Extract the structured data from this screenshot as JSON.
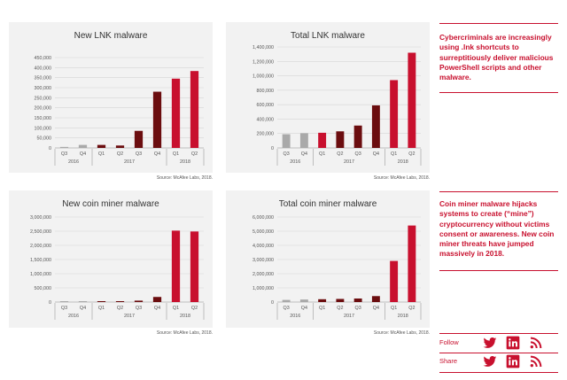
{
  "colors": {
    "gray": "#a9a9a9",
    "dark": "#6b0d0f",
    "red": "#c8102e",
    "panel": "#f2f2f2"
  },
  "chart_data": [
    {
      "type": "bar",
      "title": "New LNK malware",
      "categories": [
        "Q3",
        "Q4",
        "Q1",
        "Q2",
        "Q3",
        "Q4",
        "Q1",
        "Q2"
      ],
      "years": [
        "2016",
        "2017",
        "2018"
      ],
      "values": [
        5000,
        15000,
        15000,
        12000,
        85000,
        280000,
        345000,
        383000
      ],
      "bar_colors": [
        "gray",
        "gray",
        "dark",
        "dark",
        "dark",
        "dark",
        "red",
        "red"
      ],
      "ylim": [
        0,
        450000
      ],
      "yticks": [
        "0",
        "50,000",
        "100,000",
        "150,000",
        "200,000",
        "250,000",
        "300,000",
        "350,000",
        "400,000",
        "450,000"
      ],
      "source": "Source: McAfee Labs, 2018."
    },
    {
      "type": "bar",
      "title": "Total LNK malware",
      "categories": [
        "Q3",
        "Q4",
        "Q1",
        "Q2",
        "Q3",
        "Q4",
        "Q1",
        "Q2"
      ],
      "years": [
        "2016",
        "2017",
        "2018"
      ],
      "values": [
        190000,
        205000,
        210000,
        230000,
        310000,
        590000,
        940000,
        1320000
      ],
      "bar_colors": [
        "gray",
        "gray",
        "red",
        "dark",
        "dark",
        "dark",
        "red",
        "red"
      ],
      "ylim": [
        0,
        1400000
      ],
      "yticks": [
        "0",
        "200,000",
        "400,000",
        "600,000",
        "800,000",
        "1,000,000",
        "1,200,000",
        "1,400,000"
      ],
      "source": "Source: McAfee Labs, 2018."
    },
    {
      "type": "bar",
      "title": "New coin miner malware",
      "categories": [
        "Q3",
        "Q4",
        "Q1",
        "Q2",
        "Q3",
        "Q4",
        "Q1",
        "Q2"
      ],
      "years": [
        "2016",
        "2017",
        "2018"
      ],
      "values": [
        15000,
        20000,
        25000,
        30000,
        50000,
        180000,
        2520000,
        2490000
      ],
      "bar_colors": [
        "gray",
        "gray",
        "dark",
        "dark",
        "dark",
        "dark",
        "red",
        "red"
      ],
      "ylim": [
        0,
        3000000
      ],
      "yticks": [
        "0",
        "500,000",
        "1,000,000",
        "1,500,000",
        "2,000,000",
        "2,500,000",
        "3,000,000"
      ],
      "source": "Source: McAfee Labs, 2018."
    },
    {
      "type": "bar",
      "title": "Total coin miner malware",
      "categories": [
        "Q3",
        "Q4",
        "Q1",
        "Q2",
        "Q3",
        "Q4",
        "Q1",
        "Q2"
      ],
      "years": [
        "2016",
        "2017",
        "2018"
      ],
      "values": [
        150000,
        180000,
        200000,
        220000,
        250000,
        420000,
        2900000,
        5400000
      ],
      "bar_colors": [
        "gray",
        "gray",
        "dark",
        "dark",
        "dark",
        "dark",
        "red",
        "red"
      ],
      "ylim": [
        0,
        6000000
      ],
      "yticks": [
        "0",
        "1,000,000",
        "2,000,000",
        "3,000,000",
        "4,000,000",
        "5,000,000",
        "6,000,000"
      ],
      "source": "Source: McAfee Labs, 2018."
    }
  ],
  "sidebar": {
    "note1": "Cybercriminals are increasingly using .lnk shortcuts to surreptitiously deliver malicious PowerShell scripts and other malware.",
    "note2": "Coin miner malware hijacks systems to create (“mine”) cryptocurrency without victims consent or awareness. New coin miner threats have jumped massively in 2018.",
    "follow_label": "Follow",
    "share_label": "Share",
    "icons": [
      "twitter-icon",
      "linkedin-icon",
      "rss-icon"
    ]
  }
}
